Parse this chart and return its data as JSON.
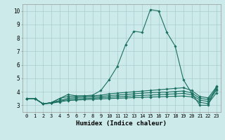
{
  "xlabel": "Humidex (Indice chaleur)",
  "bg_color": "#cceaea",
  "grid_color": "#aacccc",
  "line_color": "#1a7060",
  "xlim": [
    -0.5,
    23.5
  ],
  "ylim": [
    2.5,
    10.5
  ],
  "yticks": [
    3,
    4,
    5,
    6,
    7,
    8,
    9,
    10
  ],
  "xticks": [
    0,
    1,
    2,
    3,
    4,
    5,
    6,
    7,
    8,
    9,
    10,
    11,
    12,
    13,
    14,
    15,
    16,
    17,
    18,
    19,
    20,
    21,
    22,
    23
  ],
  "series": [
    [
      3.5,
      3.5,
      3.1,
      3.2,
      3.5,
      3.8,
      3.7,
      3.7,
      3.75,
      4.1,
      4.9,
      5.9,
      7.5,
      8.5,
      8.4,
      10.1,
      10.0,
      8.4,
      7.4,
      4.9,
      3.9,
      3.0,
      3.0,
      4.4
    ],
    [
      3.5,
      3.5,
      3.1,
      3.2,
      3.5,
      3.65,
      3.65,
      3.7,
      3.7,
      3.75,
      3.85,
      3.9,
      3.95,
      4.0,
      4.05,
      4.1,
      4.15,
      4.2,
      4.25,
      4.3,
      4.1,
      3.65,
      3.55,
      4.35
    ],
    [
      3.5,
      3.5,
      3.1,
      3.2,
      3.35,
      3.52,
      3.56,
      3.6,
      3.62,
      3.65,
      3.72,
      3.76,
      3.8,
      3.85,
      3.9,
      3.93,
      3.96,
      3.98,
      4.02,
      4.06,
      3.92,
      3.52,
      3.42,
      4.22
    ],
    [
      3.5,
      3.5,
      3.1,
      3.18,
      3.3,
      3.42,
      3.46,
      3.5,
      3.52,
      3.56,
      3.6,
      3.63,
      3.66,
      3.7,
      3.73,
      3.76,
      3.79,
      3.82,
      3.85,
      3.88,
      3.78,
      3.38,
      3.28,
      4.1
    ],
    [
      3.5,
      3.5,
      3.1,
      3.15,
      3.25,
      3.35,
      3.38,
      3.42,
      3.44,
      3.47,
      3.5,
      3.52,
      3.54,
      3.57,
      3.59,
      3.61,
      3.63,
      3.65,
      3.67,
      3.69,
      3.62,
      3.22,
      3.12,
      3.92
    ]
  ]
}
